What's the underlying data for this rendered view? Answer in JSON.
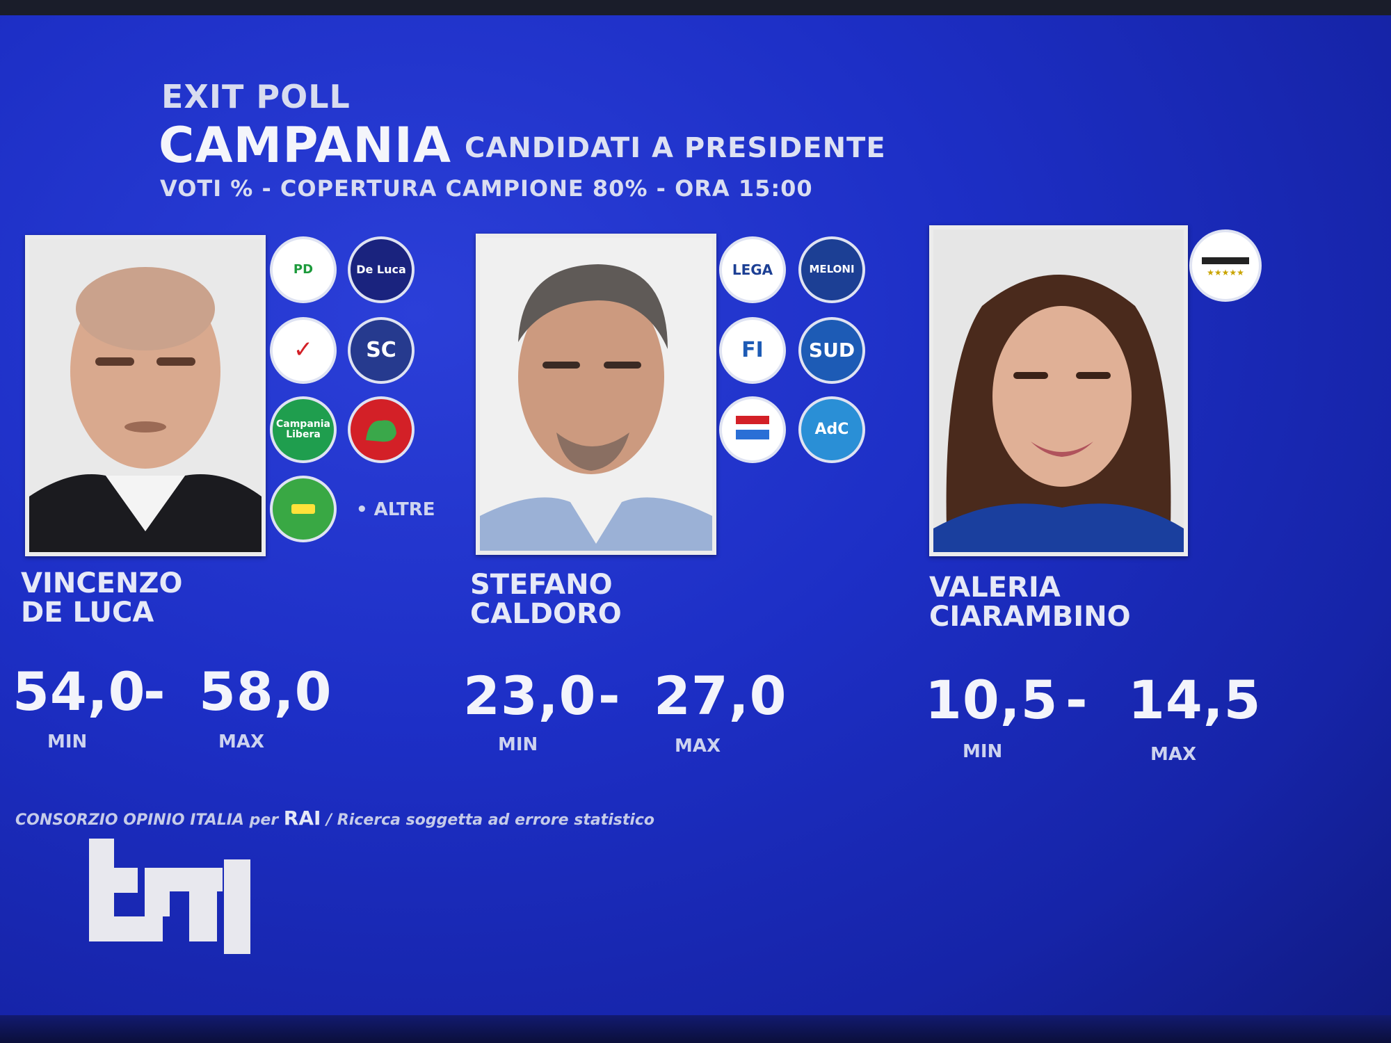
{
  "header": {
    "exit_poll": "EXIT POLL",
    "region": "CAMPANIA",
    "subtitle": "CANDIDATI A PRESIDENTE",
    "meta": "VOTI %  - COPERTURA CAMPIONE 80% - ORA 15:00"
  },
  "candidates": [
    {
      "first_name": "VINCENZO",
      "last_name": "DE LUCA",
      "min": "54,0",
      "max": "58,0",
      "min_label": "MIN",
      "max_label": "MAX",
      "separator": "-",
      "party_logos": [
        {
          "icon": "pd-logo",
          "text": "PD",
          "color": "#ffffff"
        },
        {
          "icon": "de-luca-presidente-logo",
          "text": "De Luca",
          "color": "#1a237e"
        },
        {
          "icon": "check-logo",
          "text": "✓",
          "color": "#ffffff"
        },
        {
          "icon": "dark-list-logo",
          "text": "SC",
          "color": "#263a8e"
        },
        {
          "icon": "campania-libera-logo",
          "text": "Campania Libera",
          "color": "#1f9e4e"
        },
        {
          "icon": "red-list-logo",
          "text": "",
          "color": "#d32027"
        },
        {
          "icon": "green-list-logo",
          "text": "",
          "color": "#39a844"
        }
      ],
      "others_label": "• ALTRE"
    },
    {
      "first_name": "STEFANO",
      "last_name": "CALDORO",
      "min": "23,0",
      "max": "27,0",
      "min_label": "MIN",
      "max_label": "MAX",
      "separator": "-",
      "party_logos": [
        {
          "icon": "lega-logo",
          "text": "LEGA",
          "color": "#ffffff"
        },
        {
          "icon": "fratelli-italia-logo",
          "text": "MELONI",
          "color": "#1c3f94"
        },
        {
          "icon": "forza-italia-logo",
          "text": "FI",
          "color": "#ffffff"
        },
        {
          "icon": "sud-logo",
          "text": "SUD",
          "color": "#1d5bb5"
        },
        {
          "icon": "caldoro-list-logo",
          "text": "",
          "color": "#ffffff"
        },
        {
          "icon": "adc-logo",
          "text": "AdC",
          "color": "#2a8fd6"
        }
      ]
    },
    {
      "first_name": "VALERIA",
      "last_name": "CIARAMBINO",
      "min": "10,5",
      "max": "14,5",
      "min_label": "MIN",
      "max_label": "MAX",
      "separator": "-",
      "party_logos": [
        {
          "icon": "movimento-5-stelle-logo",
          "text": "",
          "color": "#ffffff"
        }
      ]
    }
  ],
  "footer": {
    "source": "CONSORZIO OPINIO ITALIA per ",
    "rai": "RAI",
    "note": " / Ricerca soggetta ad errore statistico",
    "channel_logo": "tg1"
  }
}
